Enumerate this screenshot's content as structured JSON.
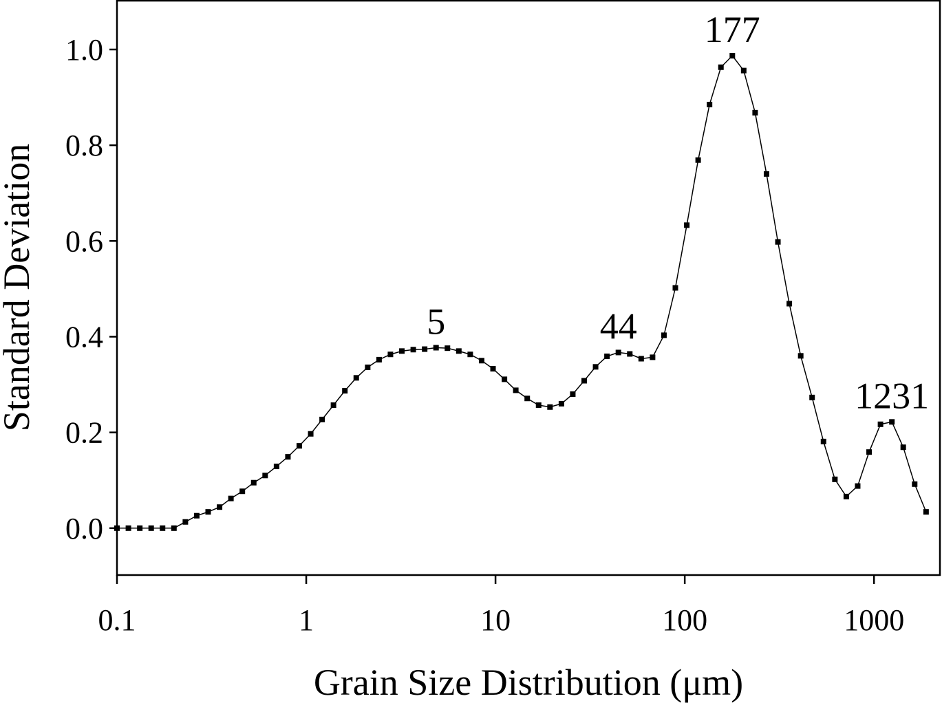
{
  "chart_data": {
    "type": "line",
    "xlabel": "Grain Size Distribution (μm)",
    "ylabel": "Standard Deviation",
    "x": [
      0.1,
      0.1149,
      0.132,
      0.1516,
      0.1741,
      0.2,
      0.2298,
      0.2639,
      0.3032,
      0.3483,
      0.4001,
      0.4596,
      0.528,
      0.6065,
      0.6967,
      0.8003,
      0.919,
      1.056,
      1.213,
      1.393,
      1.6,
      1.838,
      2.112,
      2.426,
      2.786,
      3.201,
      3.677,
      4.224,
      4.852,
      5.573,
      6.402,
      7.354,
      8.448,
      9.705,
      11.15,
      12.8,
      14.71,
      16.9,
      19.41,
      22.3,
      25.61,
      29.42,
      33.8,
      38.82,
      44.6,
      51.23,
      58.85,
      67.6,
      77.65,
      89.2,
      102.5,
      117.7,
      135.2,
      155.3,
      178.4,
      204.9,
      235.4,
      270.4,
      310.6,
      356.8,
      409.9,
      470.8,
      540.8,
      621.3,
      713.7,
      819.8,
      941.7,
      1082,
      1243,
      1427,
      1640,
      1884
    ],
    "series": [
      {
        "color": "#000000",
        "values": [
          0,
          0,
          0,
          0,
          0,
          0,
          0.013,
          0.026,
          0.034,
          0.044,
          0.062,
          0.077,
          0.095,
          0.11,
          0.129,
          0.149,
          0.172,
          0.197,
          0.227,
          0.257,
          0.287,
          0.314,
          0.336,
          0.352,
          0.363,
          0.37,
          0.373,
          0.374,
          0.377,
          0.376,
          0.37,
          0.363,
          0.35,
          0.333,
          0.311,
          0.288,
          0.271,
          0.257,
          0.253,
          0.26,
          0.28,
          0.308,
          0.337,
          0.359,
          0.367,
          0.364,
          0.354,
          0.357,
          0.403,
          0.502,
          0.633,
          0.769,
          0.885,
          0.963,
          0.987,
          0.956,
          0.868,
          0.74,
          0.598,
          0.469,
          0.36,
          0.273,
          0.181,
          0.102,
          0.066,
          0.088,
          0.159,
          0.217,
          0.222,
          0.169,
          0.092,
          0.034
        ]
      }
    ],
    "annotations": [
      "5",
      "44",
      "177",
      "1231"
    ],
    "xscale": "log",
    "xlim": [
      0.1,
      2230
    ],
    "xticks": [
      0.1,
      1,
      10,
      100,
      1000
    ],
    "ylim": [
      -0.098,
      1.102
    ],
    "yticks": [
      {
        "value": 0,
        "label": "0.0"
      },
      0.2,
      0.4,
      0.6,
      0.8,
      {
        "value": 1,
        "label": "1.0"
      }
    ],
    "grid": false
  }
}
